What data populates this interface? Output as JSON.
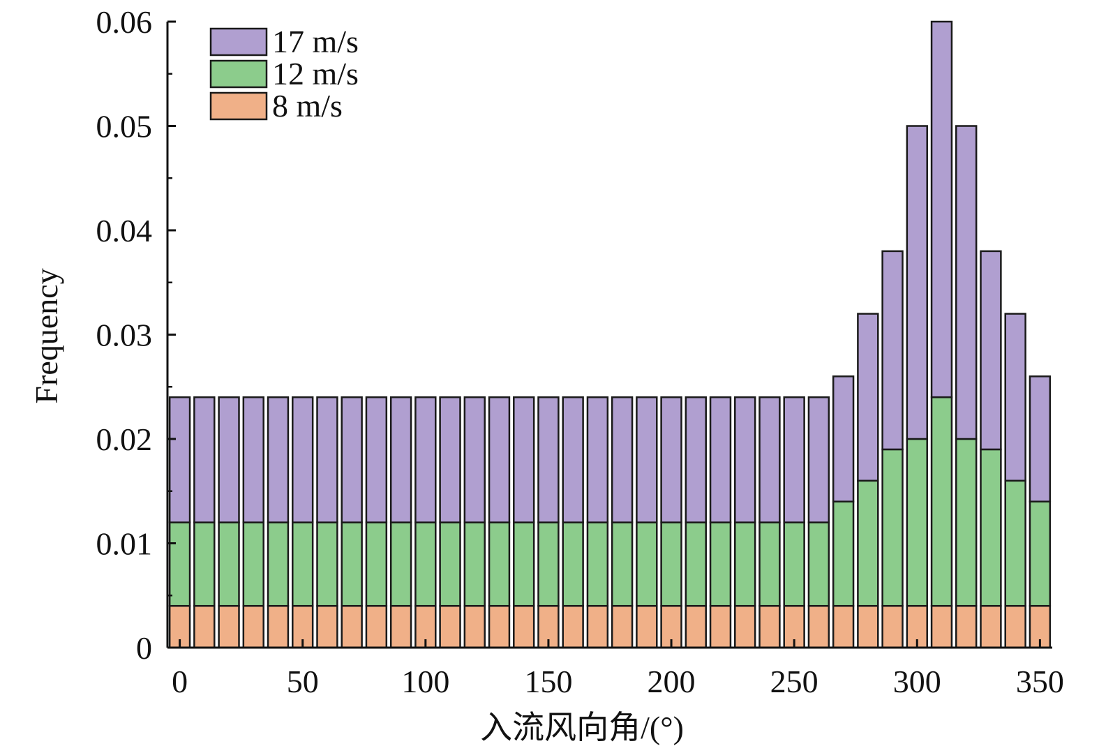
{
  "chart_data": {
    "type": "bar",
    "stacked": true,
    "xlabel": "入流风向角/(°)",
    "ylabel": "Frequency",
    "xlim": [
      -5,
      355
    ],
    "ylim": [
      0,
      0.06
    ],
    "xticks": [
      0,
      50,
      100,
      150,
      200,
      250,
      300,
      350
    ],
    "yticks": [
      0,
      0.01,
      0.02,
      0.03,
      0.04,
      0.05,
      0.06
    ],
    "ytick_labels": [
      "0",
      "0.01",
      "0.02",
      "0.03",
      "0.04",
      "0.05",
      "0.06"
    ],
    "grid": false,
    "legend_position": "top-left",
    "x": [
      0,
      10,
      20,
      30,
      40,
      50,
      60,
      70,
      80,
      90,
      100,
      110,
      120,
      130,
      140,
      150,
      160,
      170,
      180,
      190,
      200,
      210,
      220,
      230,
      240,
      250,
      260,
      270,
      280,
      290,
      300,
      310,
      320,
      330,
      340,
      350
    ],
    "series": [
      {
        "name": "8 m/s",
        "color": "#f0b088",
        "values": [
          0.004,
          0.004,
          0.004,
          0.004,
          0.004,
          0.004,
          0.004,
          0.004,
          0.004,
          0.004,
          0.004,
          0.004,
          0.004,
          0.004,
          0.004,
          0.004,
          0.004,
          0.004,
          0.004,
          0.004,
          0.004,
          0.004,
          0.004,
          0.004,
          0.004,
          0.004,
          0.004,
          0.004,
          0.004,
          0.004,
          0.004,
          0.004,
          0.004,
          0.004,
          0.004,
          0.004
        ]
      },
      {
        "name": "12 m/s",
        "color": "#8ccc8c",
        "values": [
          0.008,
          0.008,
          0.008,
          0.008,
          0.008,
          0.008,
          0.008,
          0.008,
          0.008,
          0.008,
          0.008,
          0.008,
          0.008,
          0.008,
          0.008,
          0.008,
          0.008,
          0.008,
          0.008,
          0.008,
          0.008,
          0.008,
          0.008,
          0.008,
          0.008,
          0.008,
          0.008,
          0.01,
          0.012,
          0.015,
          0.016,
          0.02,
          0.016,
          0.015,
          0.012,
          0.01
        ]
      },
      {
        "name": "17 m/s",
        "color": "#b09fd0",
        "values": [
          0.012,
          0.012,
          0.012,
          0.012,
          0.012,
          0.012,
          0.012,
          0.012,
          0.012,
          0.012,
          0.012,
          0.012,
          0.012,
          0.012,
          0.012,
          0.012,
          0.012,
          0.012,
          0.012,
          0.012,
          0.012,
          0.012,
          0.012,
          0.012,
          0.012,
          0.012,
          0.012,
          0.012,
          0.016,
          0.019,
          0.03,
          0.036,
          0.03,
          0.019,
          0.016,
          0.012
        ]
      }
    ],
    "legend_order": [
      "17 m/s",
      "12 m/s",
      "8 m/s"
    ]
  }
}
